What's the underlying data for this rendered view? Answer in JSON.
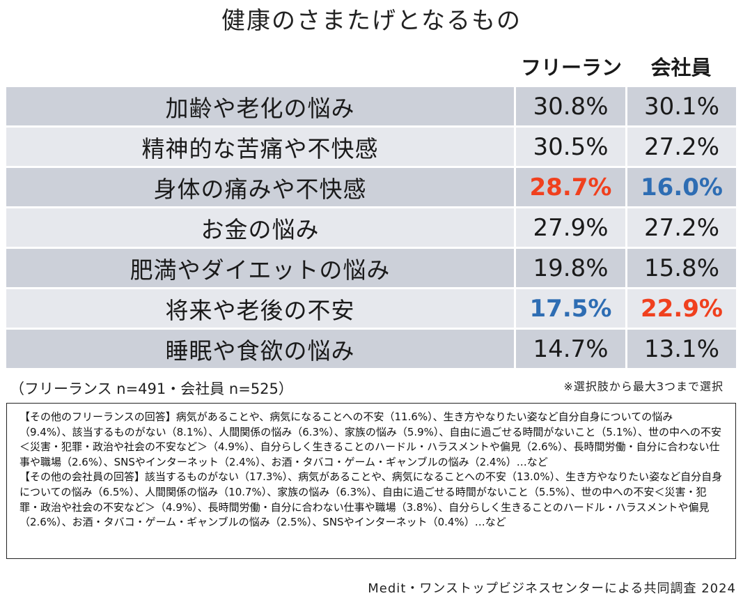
{
  "chart_data": {
    "type": "table",
    "title": "健康のさまたげとなるもの",
    "columns": [
      "フリーランス",
      "会社員"
    ],
    "rows": [
      {
        "label": "加齢や老化の悩み",
        "values": [
          "30.8%",
          "30.1%"
        ],
        "highlight": [
          "",
          ""
        ]
      },
      {
        "label": "精神的な苦痛や不快感",
        "values": [
          "30.5%",
          "27.2%"
        ],
        "highlight": [
          "",
          ""
        ]
      },
      {
        "label": "身体の痛みや不快感",
        "values": [
          "28.7%",
          "16.0%"
        ],
        "highlight": [
          "red",
          "blue"
        ]
      },
      {
        "label": "お金の悩み",
        "values": [
          "27.9%",
          "27.2%"
        ],
        "highlight": [
          "",
          ""
        ]
      },
      {
        "label": "肥満やダイエットの悩み",
        "values": [
          "19.8%",
          "15.8%"
        ],
        "highlight": [
          "",
          ""
        ]
      },
      {
        "label": "将来や老後の不安",
        "values": [
          "17.5%",
          "22.9%"
        ],
        "highlight": [
          "blue",
          "red"
        ]
      },
      {
        "label": "睡眠や食欲の悩み",
        "values": [
          "14.7%",
          "13.1%"
        ],
        "highlight": [
          "",
          ""
        ]
      }
    ],
    "sample_note": "（フリーランス n=491・会社員 n=525）",
    "selection_note": "※選択肢から最大3つまで選択",
    "other_answers": {
      "freelance": "【その他のフリーランスの回答】病気があることや、病気になることへの不安（11.6%）、生き方やなりたい姿など自分自身についての悩み（9.4%）、該当するものがない（8.1%）、人間関係の悩み（6.3%）、家族の悩み（5.9%）、自由に過ごせる時間がないこと（5.1%）、世の中への不安＜災害・犯罪・政治や社会の不安など＞（4.9%）、自分らしく生きることのハードル・ハラスメントや偏見（2.6%）、長時間労働・自分に合わない仕事や職場（2.6%）、SNSやインターネット（2.4%）、お酒・タバコ・ゲーム・ギャンブルの悩み（2.4%）…など",
      "employee": "【その他の会社員の回答】該当するものがない（17.3%）、病気があることや、病気になることへの不安（13.0%）、生き方やなりたい姿など自分自身についての悩み（6.5%）、人間関係の悩み（10.7%）、家族の悩み（6.3%）、自由に過ごせる時間がないこと（5.5%）、世の中への不安＜災害・犯罪・政治や社会の不安など＞（4.9%）、長時間労働・自分に合わない仕事や職場（3.8%）、自分らしく生きることのハードル・ハラスメントや偏見（2.6%）、お酒・タバコ・ゲーム・ギャンブルの悩み（2.5%）、SNSやインターネット（0.4%）…など"
    },
    "credit": "Medit・ワンストップビジネスセンターによる共同調査 2024"
  },
  "colors": {
    "row_dark": "#ccd0d9",
    "row_light": "#e6e8ed",
    "highlight_red": "#f0401e",
    "highlight_blue": "#2e6db3"
  }
}
